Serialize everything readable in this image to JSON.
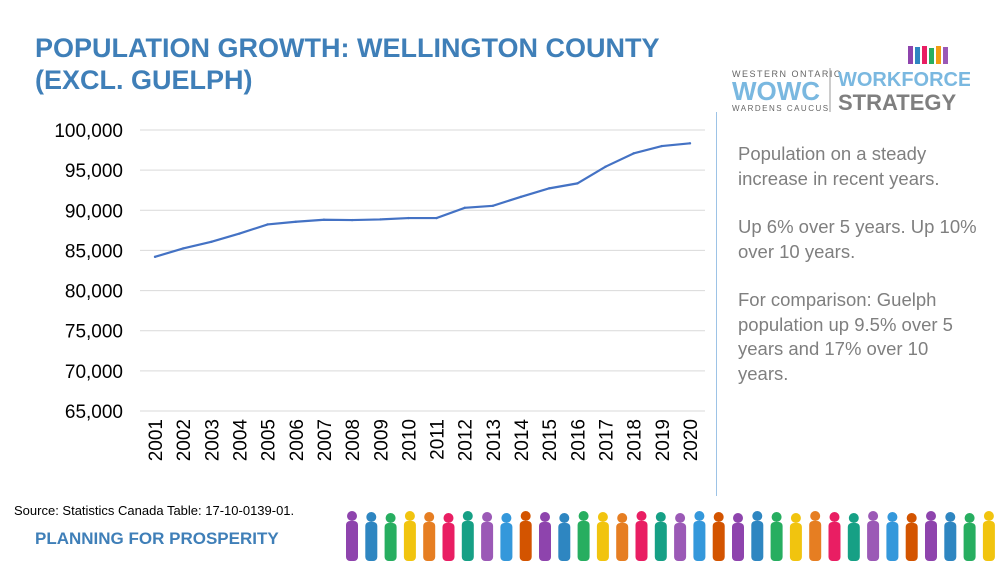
{
  "title": "POPULATION GROWTH: WELLINGTON COUNTY (EXCL. GUELPH)",
  "logo": {
    "line1": "WESTERN ONTARIO",
    "line2": "WOWC",
    "line3": "WARDENS CAUCUS",
    "right1": "WORKFORCE",
    "right2": "STRATEGY"
  },
  "side_text": [
    "Population on a steady increase in recent years.",
    "Up 6% over 5 years. Up 10% over 10 years.",
    "For comparison: Guelph population up 9.5% over 5 years and 17% over 10 years."
  ],
  "source": "Source: Statistics Canada Table: 17-10-0139-01.",
  "footer": "PLANNING FOR PROSPERITY",
  "colors": {
    "title": "#3f7fb8",
    "line": "#4472c4",
    "side_text": "#7f7f7f"
  },
  "chart_data": {
    "type": "line",
    "x": [
      "2001",
      "2002",
      "2003",
      "2004",
      "2005",
      "2006",
      "2007",
      "2008",
      "2009",
      "2010",
      "2011",
      "2012",
      "2013",
      "2014",
      "2015",
      "2016",
      "2017",
      "2018",
      "2019",
      "2020"
    ],
    "values": [
      84200,
      85250,
      86070,
      87100,
      88240,
      88570,
      88820,
      88780,
      88860,
      89030,
      89030,
      90310,
      90560,
      91680,
      92730,
      93350,
      95430,
      97090,
      98000,
      98340
    ],
    "ylim": [
      65000,
      100000
    ],
    "yticks": [
      "65,000",
      "70,000",
      "75,000",
      "80,000",
      "85,000",
      "90,000",
      "95,000",
      "100,000"
    ],
    "grid": true,
    "legend": "none"
  }
}
